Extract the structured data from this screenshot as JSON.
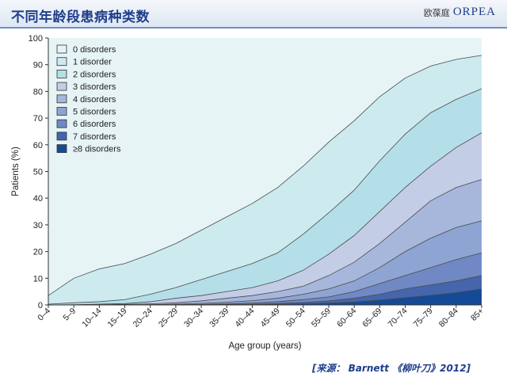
{
  "header": {
    "title": "不同年龄段患病种类数",
    "brand_cn": "欧葆庭",
    "brand_en": "ORPEA"
  },
  "source_note": "[来源： Barnett 《柳叶刀》2012]",
  "chart_data": {
    "type": "area",
    "title": "",
    "xlabel": "Age group (years)",
    "ylabel": "Patients (%)",
    "ylim": [
      0,
      100
    ],
    "yticks": [
      0,
      10,
      20,
      30,
      40,
      50,
      60,
      70,
      80,
      90,
      100
    ],
    "grid": false,
    "legend_position": "top-left",
    "categories": [
      "0–4",
      "5–9",
      "10–14",
      "15–19",
      "20–24",
      "25–29",
      "30–34",
      "35–39",
      "40–44",
      "45–49",
      "50–54",
      "55–59",
      "60–64",
      "65–69",
      "70–74",
      "75–79",
      "80–84",
      "85+"
    ],
    "series": [
      {
        "name": "0 disorders",
        "color": "#e6f4f6"
      },
      {
        "name": "1 disorder",
        "color": "#cdeaef"
      },
      {
        "name": "2 disorders",
        "color": "#b4dfe8"
      },
      {
        "name": "3 disorders",
        "color": "#c4cde6"
      },
      {
        "name": "4 disorders",
        "color": "#a7b7dc"
      },
      {
        "name": "5 disorders",
        "color": "#8ea4d2"
      },
      {
        "name": "6 disorders",
        "color": "#7088c4"
      },
      {
        "name": "7 disorders",
        "color": "#4566ad"
      },
      {
        "name": "≥8 disorders",
        "color": "#154a96"
      }
    ],
    "cumulative_boundaries": [
      {
        "label": "≥1 disorder",
        "values": [
          3.5,
          10,
          13.5,
          15.5,
          19,
          23,
          28,
          33,
          38,
          44,
          52,
          61,
          69,
          78,
          85,
          89.5,
          92,
          93.5
        ]
      },
      {
        "label": "≥2 disorders",
        "values": [
          0.3,
          0.8,
          1.2,
          2,
          4,
          6.5,
          9.5,
          12.5,
          15.5,
          19.5,
          26.5,
          34.5,
          43,
          54,
          64,
          72,
          77,
          81
        ]
      },
      {
        "label": "≥3 disorders",
        "values": [
          0,
          0.1,
          0.3,
          0.5,
          1.2,
          2.5,
          3.5,
          5,
          6.5,
          9,
          13,
          19,
          26,
          35,
          44,
          52,
          59,
          64.5
        ]
      },
      {
        "label": "≥4 disorders",
        "values": [
          0,
          0,
          0.1,
          0.2,
          0.4,
          0.8,
          1.5,
          2.5,
          3.5,
          5,
          7,
          11,
          16,
          23,
          31,
          39,
          44,
          47
        ]
      },
      {
        "label": "≥5 disorders",
        "values": [
          0,
          0,
          0,
          0.05,
          0.1,
          0.3,
          0.6,
          1,
          1.6,
          2.5,
          4,
          6,
          9,
          14,
          20,
          25,
          29,
          31.5
        ]
      },
      {
        "label": "≥6 disorders",
        "values": [
          0,
          0,
          0,
          0,
          0.05,
          0.1,
          0.2,
          0.4,
          0.7,
          1.2,
          2,
          3,
          5,
          8,
          11,
          14,
          17,
          19.5
        ]
      },
      {
        "label": "≥7 disorders",
        "values": [
          0,
          0,
          0,
          0,
          0,
          0.05,
          0.1,
          0.2,
          0.3,
          0.5,
          0.9,
          1.5,
          2.5,
          4,
          6,
          7.5,
          9,
          11
        ]
      },
      {
        "label": "≥8 disorders",
        "values": [
          0,
          0,
          0,
          0,
          0,
          0,
          0.05,
          0.1,
          0.15,
          0.25,
          0.4,
          0.7,
          1.1,
          1.8,
          2.7,
          3.6,
          4.6,
          6
        ]
      }
    ]
  }
}
